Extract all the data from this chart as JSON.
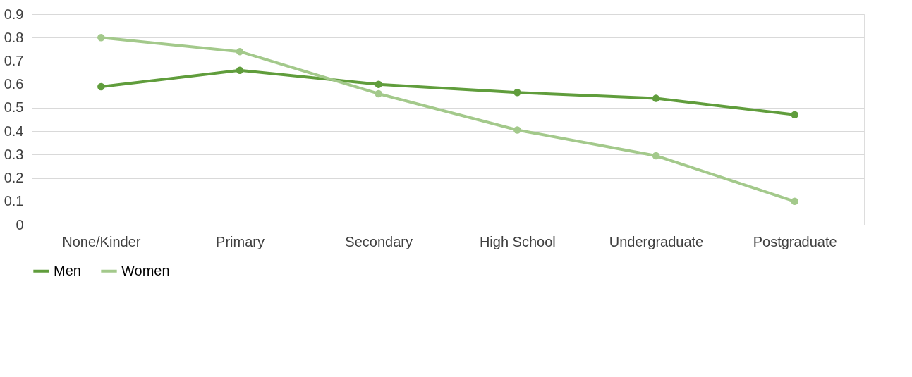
{
  "chart_data": {
    "type": "line",
    "categories": [
      "None/Kinder",
      "Primary",
      "Secondary",
      "High School",
      "Undergraduate",
      "Postgraduate"
    ],
    "series": [
      {
        "name": "Men",
        "color": "#609d3c",
        "values": [
          0.59,
          0.66,
          0.6,
          0.565,
          0.54,
          0.47
        ]
      },
      {
        "name": "Women",
        "color": "#a3c98b",
        "values": [
          0.8,
          0.74,
          0.56,
          0.405,
          0.295,
          0.1
        ]
      }
    ],
    "ylim": [
      0,
      0.9
    ],
    "yticks": [
      0,
      0.1,
      0.2,
      0.3,
      0.4,
      0.5,
      0.6,
      0.7,
      0.8,
      0.9
    ],
    "grid": "y",
    "legend": "bottom",
    "marker": "circle",
    "line_style": "solid"
  }
}
